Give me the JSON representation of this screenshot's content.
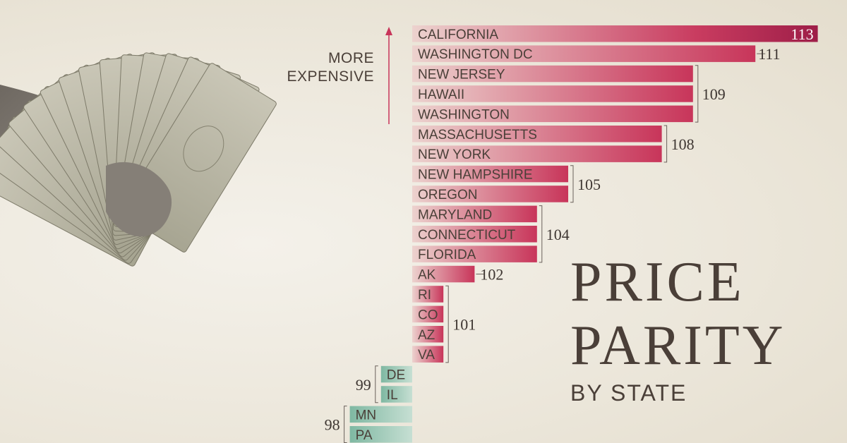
{
  "annotation": {
    "line1": "MORE",
    "line2": "EXPENSIVE"
  },
  "title": {
    "line1": "PRICE",
    "line2": "PARITY",
    "subtitle": "BY STATE"
  },
  "colors": {
    "above": "#c8355a",
    "above_light": "#ecd2ce",
    "below": "#7fb8a2",
    "text": "#4a3f38"
  },
  "chart_data": {
    "type": "bar",
    "orientation": "horizontal",
    "baseline": 100,
    "categories": [
      "CALIFORNIA",
      "WASHINGTON DC",
      "NEW JERSEY",
      "HAWAII",
      "WASHINGTON",
      "MASSACHUSETTS",
      "NEW YORK",
      "NEW HAMPSHIRE",
      "OREGON",
      "MARYLAND",
      "CONNECTICUT",
      "FLORIDA",
      "AK",
      "RI",
      "CO",
      "AZ",
      "VA",
      "DE",
      "IL",
      "MN",
      "PA"
    ],
    "values": [
      113,
      111,
      109,
      109,
      109,
      108,
      108,
      105,
      105,
      104,
      104,
      104,
      102,
      101,
      101,
      101,
      101,
      99,
      99,
      98,
      98
    ],
    "groups": [
      {
        "label": "113",
        "start": 0,
        "end": 0
      },
      {
        "label": "111",
        "start": 1,
        "end": 1
      },
      {
        "label": "109",
        "start": 2,
        "end": 4
      },
      {
        "label": "108",
        "start": 5,
        "end": 6
      },
      {
        "label": "105",
        "start": 7,
        "end": 8
      },
      {
        "label": "104",
        "start": 9,
        "end": 11
      },
      {
        "label": "102",
        "start": 12,
        "end": 12
      },
      {
        "label": "101",
        "start": 13,
        "end": 16
      },
      {
        "label": "99",
        "start": 17,
        "end": 18
      },
      {
        "label": "98",
        "start": 19,
        "end": 20
      }
    ]
  }
}
